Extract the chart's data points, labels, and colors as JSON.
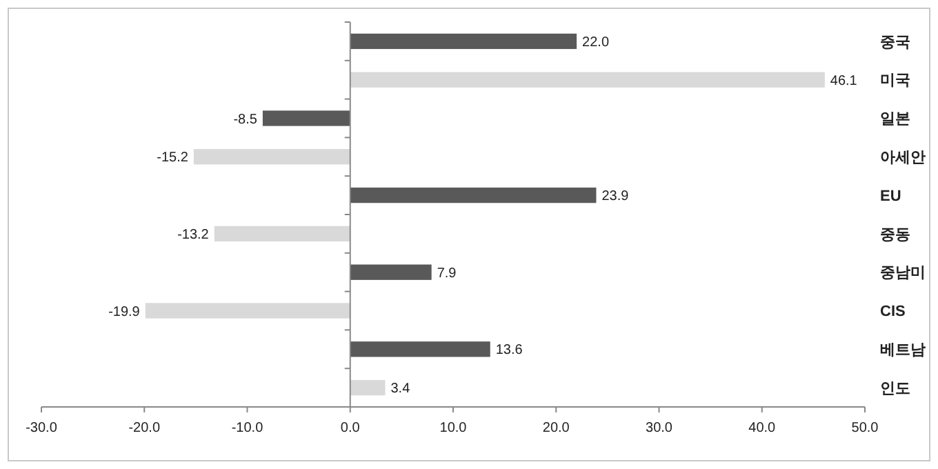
{
  "chart_data": {
    "type": "bar",
    "orientation": "horizontal",
    "categories": [
      "중국",
      "미국",
      "일본",
      "아세안",
      "EU",
      "중동",
      "중남미",
      "CIS",
      "베트남",
      "인도"
    ],
    "values": [
      22.0,
      46.1,
      -8.5,
      -15.2,
      23.9,
      -13.2,
      7.9,
      -19.9,
      13.6,
      3.4
    ],
    "colors": [
      "#595959",
      "#d9d9d9",
      "#595959",
      "#d9d9d9",
      "#595959",
      "#d9d9d9",
      "#595959",
      "#d9d9d9",
      "#595959",
      "#d9d9d9"
    ],
    "xlim": [
      -30,
      50
    ],
    "xticks": [
      {
        "value": -30,
        "label": "-30.0"
      },
      {
        "value": -20,
        "label": "-20.0"
      },
      {
        "value": -10,
        "label": "-10.0"
      },
      {
        "value": 0,
        "label": "0.0"
      },
      {
        "value": 10,
        "label": "10.0"
      },
      {
        "value": 20,
        "label": "20.0"
      },
      {
        "value": 30,
        "label": "30.0"
      },
      {
        "value": 40,
        "label": "40.0"
      },
      {
        "value": 50,
        "label": "50.0"
      }
    ],
    "value_labels": [
      "22.0",
      "46.1",
      "-8.5",
      "-15.2",
      "23.9",
      "-13.2",
      "7.9",
      "-19.9",
      "13.6",
      "3.4"
    ]
  }
}
